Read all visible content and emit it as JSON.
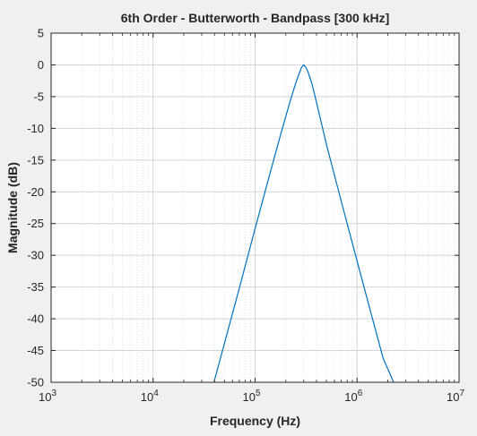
{
  "chart_data": {
    "type": "line",
    "title": "6th Order - Butterworth - Bandpass [300 kHz]",
    "xlabel": "Frequency  (Hz)",
    "ylabel": "Magnitude (dB)",
    "x_scale": "log",
    "xlim": [
      1000,
      10000000
    ],
    "ylim": [
      -50,
      5
    ],
    "x_ticks": [
      {
        "base": "10",
        "exp": "3",
        "value": 1000
      },
      {
        "base": "10",
        "exp": "4",
        "value": 10000
      },
      {
        "base": "10",
        "exp": "5",
        "value": 100000
      },
      {
        "base": "10",
        "exp": "6",
        "value": 1000000
      },
      {
        "base": "10",
        "exp": "7",
        "value": 10000000
      }
    ],
    "y_ticks": [
      "5",
      "0",
      "-5",
      "-10",
      "-15",
      "-20",
      "-25",
      "-30",
      "-35",
      "-40",
      "-45",
      "-50"
    ],
    "grid": true,
    "minor_grid": true,
    "series": [
      {
        "color": "#0072bd",
        "x": [
          39500,
          50000,
          70000,
          100000,
          140000,
          180000,
          220000,
          250000,
          270000,
          285000,
          300000,
          315000,
          330000,
          360000,
          400000,
          500000,
          700000,
          1000000,
          1400000,
          1800000,
          2280000
        ],
        "y": [
          -50,
          -43.9,
          -35.2,
          -25.8,
          -17.1,
          -10.7,
          -5.8,
          -2.9,
          -1.4,
          -0.4,
          0,
          -0.4,
          -1.1,
          -2.9,
          -5.9,
          -12.5,
          -21.5,
          -30.9,
          -39.7,
          -46.2,
          -50
        ]
      }
    ]
  }
}
